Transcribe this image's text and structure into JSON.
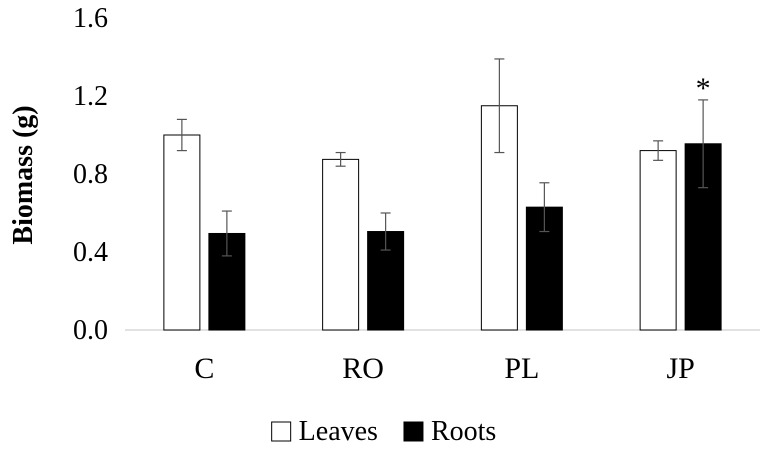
{
  "chart_data": {
    "type": "bar",
    "title": "",
    "xlabel": "",
    "ylabel": "Biomass (g)",
    "ylim": [
      0,
      1.6
    ],
    "yticks": [
      "0.0",
      "0.4",
      "0.8",
      "1.2",
      "1.6"
    ],
    "categories": [
      "C",
      "RO",
      "PL",
      "JP"
    ],
    "series": [
      {
        "name": "Leaves",
        "fill": "#ffffff",
        "values": [
          1.0,
          0.875,
          1.15,
          0.92
        ],
        "errors": [
          0.08,
          0.035,
          0.24,
          0.05
        ]
      },
      {
        "name": "Roots",
        "fill": "#000000",
        "values": [
          0.495,
          0.505,
          0.63,
          0.955
        ],
        "errors": [
          0.115,
          0.095,
          0.125,
          0.225
        ]
      }
    ],
    "annotations": [
      {
        "category": "JP",
        "series": "Roots",
        "text": "*"
      }
    ],
    "legend": "bottom",
    "grid": false
  }
}
